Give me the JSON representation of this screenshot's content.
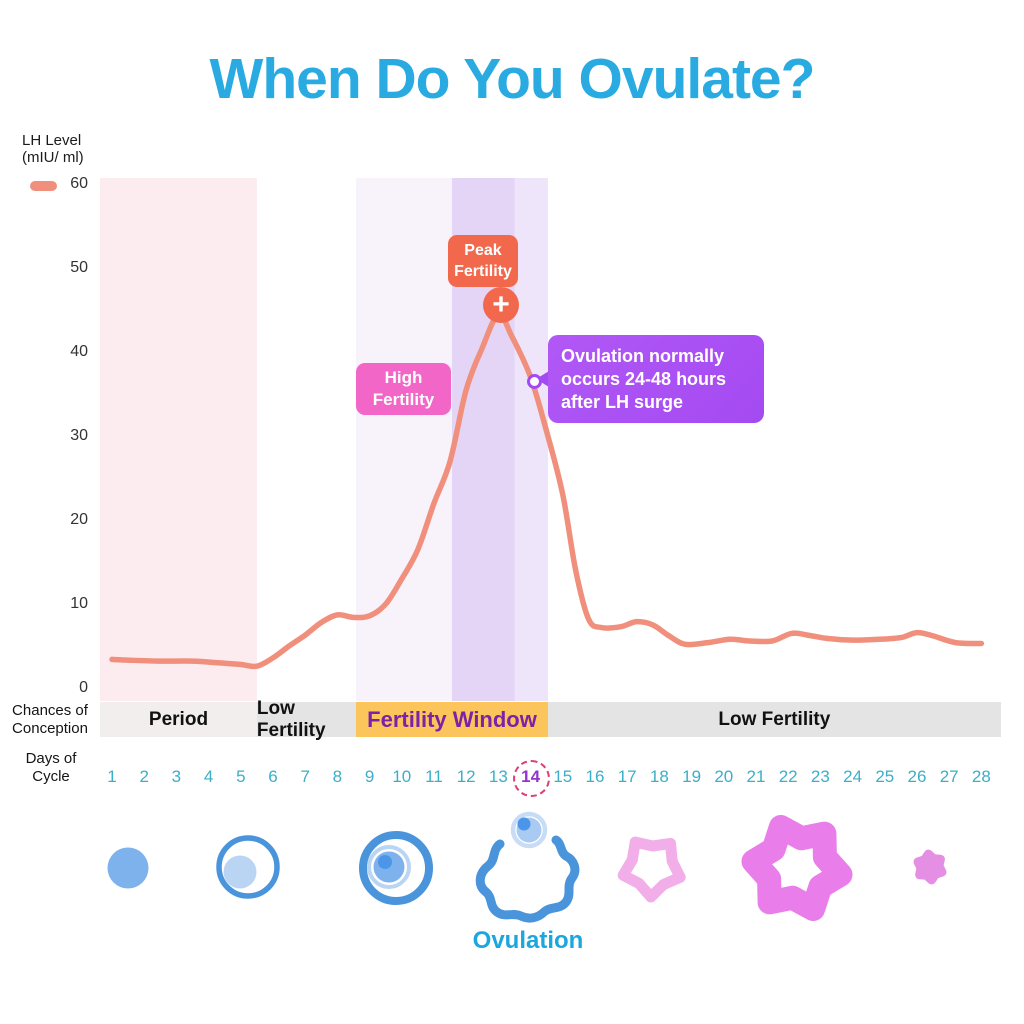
{
  "title": {
    "text": "When Do You Ovulate?"
  },
  "palette": {
    "title_blue": "#29ABE2",
    "ovulation_blue": "#1CA6DE",
    "curve_salmon": "#F0907C",
    "peak_badge_orange": "#F2684C",
    "high_badge_pink": "#F266C8",
    "tooltip_purple": "#A44AF2",
    "fertility_window_amber": "#FBC55C",
    "fertility_window_text": "#7B22A8",
    "day_number_cyan": "#3CAEC8",
    "day14_purple": "#9333C9",
    "day14_dashed_ring": "#DD3D78",
    "follicle_blue": "#4A94DB",
    "follicle_fill_blue": "#7EB2ED",
    "follicle_light_blue": "#B9D5F3",
    "egg_inner_blue": "#A9CBF3",
    "egg_dot_blue": "#4C96EA",
    "corpus_luteum_light_pink": "#F2AEE8",
    "corpus_luteum_pink": "#E97DE9",
    "corpus_luteum_small_pink": "#E48FE4"
  },
  "axis": {
    "y_legend": "LH Level\n(mIU/ ml)",
    "row_left_labels": {
      "conception": "Chances of\nConception",
      "days": "Days of\nCycle"
    }
  },
  "chart_data": {
    "type": "line",
    "title": "When Do You Ovulate?",
    "ylabel": "LH Level (mIU/ ml)",
    "xlabel": "Days of Cycle",
    "ylim": [
      0,
      60
    ],
    "yticks": [
      0,
      10,
      20,
      30,
      40,
      50,
      60
    ],
    "days": [
      1,
      2,
      3,
      4,
      5,
      6,
      7,
      8,
      9,
      10,
      11,
      12,
      13,
      14,
      15,
      16,
      17,
      18,
      19,
      20,
      21,
      22,
      23,
      24,
      25,
      26,
      27,
      28
    ],
    "highlighted_day": 14,
    "grid": false,
    "legend_position": "top-left",
    "series": [
      {
        "name": "LH Level",
        "color": "#F0907C",
        "points": [
          [
            1,
            3.4
          ],
          [
            1.6,
            3.3
          ],
          [
            2.5,
            3.2
          ],
          [
            3.5,
            3.2
          ],
          [
            4.3,
            3.0
          ],
          [
            5,
            2.8
          ],
          [
            5.5,
            2.6
          ],
          [
            6,
            3.6
          ],
          [
            6.5,
            5.0
          ],
          [
            7,
            6.3
          ],
          [
            7.5,
            7.8
          ],
          [
            8,
            8.7
          ],
          [
            8.5,
            8.4
          ],
          [
            9,
            8.6
          ],
          [
            9.5,
            10
          ],
          [
            10,
            13
          ],
          [
            10.5,
            16.5
          ],
          [
            11,
            22
          ],
          [
            11.5,
            27
          ],
          [
            12,
            35.5
          ],
          [
            12.5,
            40.5
          ],
          [
            13,
            44.5
          ],
          [
            13.4,
            42
          ],
          [
            14,
            37
          ],
          [
            14.5,
            30.5
          ],
          [
            15,
            23
          ],
          [
            15.4,
            14
          ],
          [
            15.8,
            8.2
          ],
          [
            16.2,
            7.2
          ],
          [
            16.8,
            7.3
          ],
          [
            17.3,
            7.9
          ],
          [
            17.8,
            7.5
          ],
          [
            18.3,
            6.2
          ],
          [
            18.8,
            5.2
          ],
          [
            19.5,
            5.4
          ],
          [
            20.2,
            5.8
          ],
          [
            20.8,
            5.6
          ],
          [
            21.5,
            5.6
          ],
          [
            22.1,
            6.5
          ],
          [
            22.6,
            6.3
          ],
          [
            23.2,
            5.9
          ],
          [
            24,
            5.7
          ],
          [
            24.8,
            5.8
          ],
          [
            25.5,
            6.0
          ],
          [
            26,
            6.6
          ],
          [
            26.5,
            6.2
          ],
          [
            27.2,
            5.4
          ],
          [
            28,
            5.3
          ]
        ]
      }
    ],
    "regions": [
      {
        "name": "period-shade",
        "from_day": 0.63,
        "to_day": 5.5,
        "color": "#FCEBEF"
      },
      {
        "name": "fertility-window-shade",
        "from_day": 8.58,
        "to_day": 11.56,
        "color": "#F8F2FB"
      },
      {
        "name": "peak-fertility-shade",
        "from_day": 11.56,
        "to_day": 13.51,
        "color": "#E4D5F7"
      },
      {
        "name": "post-peak-shade",
        "from_day": 13.51,
        "to_day": 14.54,
        "color": "#EFE5FA"
      }
    ],
    "conception_segments": [
      {
        "label": "Period",
        "from_day": 0.63,
        "to_day": 5.5,
        "bg": "#F2EEEE",
        "color": "#111111",
        "size": 19
      },
      {
        "label": "Low Fertility",
        "from_day": 5.5,
        "to_day": 8.58,
        "bg": "#E4E4E4",
        "color": "#111111",
        "size": 19
      },
      {
        "label": "Fertility Window",
        "from_day": 8.58,
        "to_day": 14.54,
        "bg": "#FBC55C",
        "color": "#7B22A8",
        "size": 22
      },
      {
        "label": "Low Fertility",
        "from_day": 14.54,
        "to_day": 28.6,
        "bg": "#E4E4E4",
        "color": "#111111",
        "size": 19
      }
    ],
    "annotations": {
      "peak_badge": "Peak\nFertility",
      "high_badge": "High\nFertility",
      "tooltip": "Ovulation normally\noccurs 24-48 hours\nafter LH surge",
      "plus_icon": "+"
    }
  },
  "footer": {
    "ovulation_label": "Ovulation"
  }
}
